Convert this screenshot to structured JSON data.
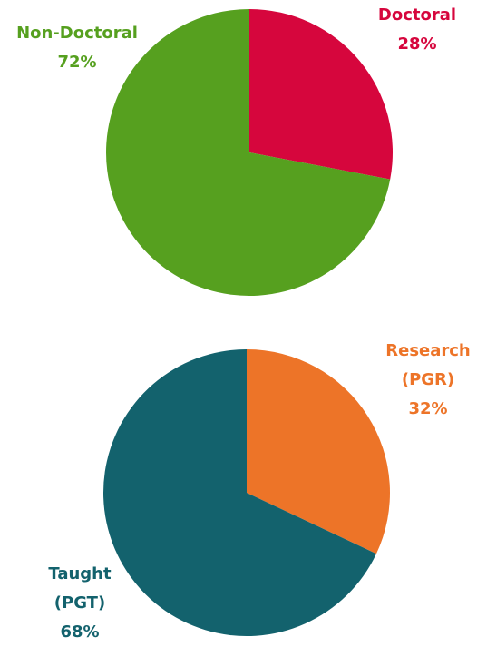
{
  "chart_data": [
    {
      "type": "pie",
      "categories": [
        "Doctoral",
        "Non-Doctoral"
      ],
      "values": [
        28,
        72
      ],
      "value_labels": [
        "28%",
        "72%"
      ],
      "colors": [
        "#d6063d",
        "#56a01f"
      ]
    },
    {
      "type": "pie",
      "categories": [
        "Research (PGR)",
        "Taught (PGT)"
      ],
      "values": [
        32,
        68
      ],
      "value_labels": [
        "32%",
        "68%"
      ],
      "colors": [
        "#ed7428",
        "#13626d"
      ]
    }
  ]
}
